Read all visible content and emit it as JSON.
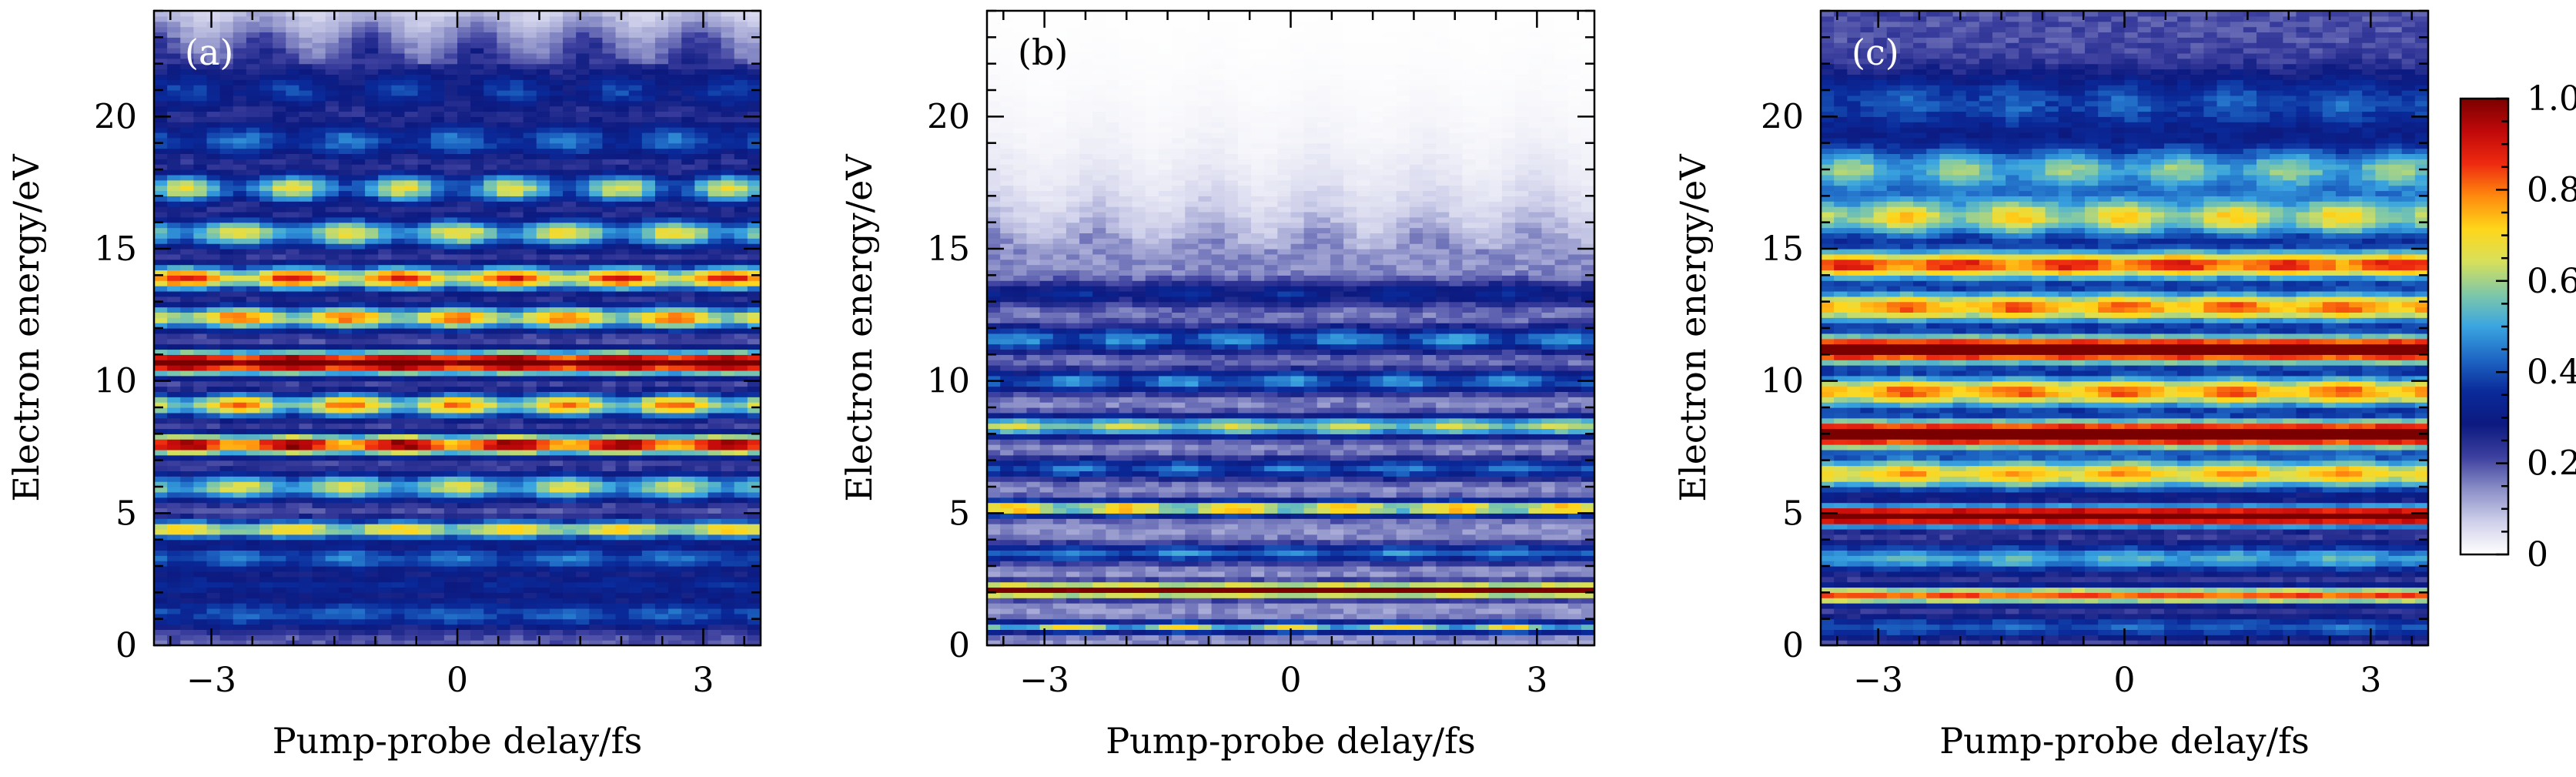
{
  "chart_data": [
    {
      "type": "heatmap",
      "panel_label": "(a)",
      "xlabel": "Pump-probe delay/fs",
      "ylabel": "Electron energy/eV",
      "xlim": [
        -3.7,
        3.7
      ],
      "ylim": [
        0,
        24
      ],
      "xticks": [
        -3,
        0,
        3
      ],
      "xtick_labels": [
        "−3",
        "0",
        "3"
      ],
      "yticks": [
        0,
        5,
        10,
        15,
        20
      ],
      "ytick_labels": [
        "0",
        "5",
        "10",
        "15",
        "20"
      ],
      "bands": [
        {
          "energy": 1.2,
          "width": 0.6,
          "level": 0.22,
          "modulation": 0.03
        },
        {
          "energy": 2.3,
          "width": 0.4,
          "level": 0.14,
          "modulation": 0.02
        },
        {
          "energy": 3.3,
          "width": 0.5,
          "level": 0.24,
          "modulation": 0.04
        },
        {
          "energy": 4.4,
          "width": 0.35,
          "level": 0.48,
          "modulation": 0.08
        },
        {
          "energy": 6.0,
          "width": 0.5,
          "level": 0.4,
          "modulation": 0.1
        },
        {
          "energy": 7.6,
          "width": 0.38,
          "level": 0.72,
          "modulation": 0.12
        },
        {
          "energy": 9.1,
          "width": 0.45,
          "level": 0.5,
          "modulation": 0.14
        },
        {
          "energy": 10.7,
          "width": 0.42,
          "level": 0.88,
          "modulation": 0.08
        },
        {
          "energy": 12.4,
          "width": 0.45,
          "level": 0.52,
          "modulation": 0.12
        },
        {
          "energy": 13.9,
          "width": 0.45,
          "level": 0.58,
          "modulation": 0.14
        },
        {
          "energy": 15.6,
          "width": 0.55,
          "level": 0.4,
          "modulation": 0.12
        },
        {
          "energy": 17.3,
          "width": 0.55,
          "level": 0.36,
          "modulation": 0.14
        },
        {
          "energy": 19.1,
          "width": 0.7,
          "level": 0.22,
          "modulation": 0.06
        },
        {
          "energy": 21.0,
          "width": 0.8,
          "level": 0.16,
          "modulation": 0.05
        },
        {
          "energy": 23.0,
          "width": 1.0,
          "level": 0.08,
          "modulation": 0.03
        }
      ],
      "background": 0.18,
      "fade_above": 22.0,
      "oscillation_period_fs": 1.33
    },
    {
      "type": "heatmap",
      "panel_label": "(b)",
      "xlabel": "Pump-probe delay/fs",
      "ylabel": "Electron energy/eV",
      "xlim": [
        -3.7,
        3.7
      ],
      "ylim": [
        0,
        24
      ],
      "xticks": [
        -3,
        0,
        3
      ],
      "xtick_labels": [
        "−3",
        "0",
        "3"
      ],
      "yticks": [
        0,
        5,
        10,
        15,
        20
      ],
      "ytick_labels": [
        "0",
        "5",
        "10",
        "15",
        "20"
      ],
      "bands": [
        {
          "energy": 0.7,
          "width": 0.22,
          "level": 0.45,
          "modulation": 0.12
        },
        {
          "energy": 2.1,
          "width": 0.25,
          "level": 0.92,
          "modulation": 0.05
        },
        {
          "energy": 3.5,
          "width": 0.35,
          "level": 0.3,
          "modulation": 0.05
        },
        {
          "energy": 5.2,
          "width": 0.3,
          "level": 0.55,
          "modulation": 0.1
        },
        {
          "energy": 6.7,
          "width": 0.4,
          "level": 0.28,
          "modulation": 0.05
        },
        {
          "energy": 8.3,
          "width": 0.4,
          "level": 0.45,
          "modulation": 0.06
        },
        {
          "energy": 10.0,
          "width": 0.45,
          "level": 0.3,
          "modulation": 0.06
        },
        {
          "energy": 11.6,
          "width": 0.5,
          "level": 0.3,
          "modulation": 0.06
        },
        {
          "energy": 13.3,
          "width": 0.5,
          "level": 0.18,
          "modulation": 0.04
        }
      ],
      "background": 0.14,
      "fade_above": 15.0,
      "oscillation_period_fs": 1.33
    },
    {
      "type": "heatmap",
      "panel_label": "(c)",
      "xlabel": "Pump-probe delay/fs",
      "ylabel": "Electron energy/eV",
      "xlim": [
        -3.7,
        3.7
      ],
      "ylim": [
        0,
        24
      ],
      "xticks": [
        -3,
        0,
        3
      ],
      "xtick_labels": [
        "−3",
        "0",
        "3"
      ],
      "yticks": [
        0,
        5,
        10,
        15,
        20
      ],
      "ytick_labels": [
        "0",
        "5",
        "10",
        "15",
        "20"
      ],
      "bands": [
        {
          "energy": 0.7,
          "width": 0.4,
          "level": 0.22,
          "modulation": 0.02
        },
        {
          "energy": 1.9,
          "width": 0.3,
          "level": 0.62,
          "modulation": 0.03
        },
        {
          "energy": 3.3,
          "width": 0.5,
          "level": 0.32,
          "modulation": 0.03
        },
        {
          "energy": 4.9,
          "width": 0.35,
          "level": 0.96,
          "modulation": 0.02
        },
        {
          "energy": 6.5,
          "width": 0.6,
          "level": 0.52,
          "modulation": 0.06
        },
        {
          "energy": 8.0,
          "width": 0.5,
          "level": 0.92,
          "modulation": 0.04
        },
        {
          "energy": 9.6,
          "width": 0.6,
          "level": 0.58,
          "modulation": 0.06
        },
        {
          "energy": 11.2,
          "width": 0.5,
          "level": 0.9,
          "modulation": 0.04
        },
        {
          "energy": 12.8,
          "width": 0.6,
          "level": 0.58,
          "modulation": 0.06
        },
        {
          "energy": 14.4,
          "width": 0.55,
          "level": 0.64,
          "modulation": 0.06
        },
        {
          "energy": 16.2,
          "width": 0.8,
          "level": 0.44,
          "modulation": 0.08
        },
        {
          "energy": 18.0,
          "width": 0.9,
          "level": 0.34,
          "modulation": 0.06
        },
        {
          "energy": 20.5,
          "width": 1.2,
          "level": 0.2,
          "modulation": 0.03
        }
      ],
      "background": 0.2,
      "fade_above": 30.0,
      "oscillation_period_fs": 1.33
    }
  ],
  "colorbar": {
    "range": [
      0,
      1
    ],
    "ticks": [
      0,
      0.2,
      0.4,
      0.6,
      0.8,
      1.0
    ],
    "tick_labels": [
      "0",
      "0.2",
      "0.4",
      "0.6",
      "0.8",
      "1.0"
    ],
    "colors": [
      "#ffffff",
      "#cfd0ea",
      "#8b8fc7",
      "#3c3f9e",
      "#0c1a80",
      "#0a2a9a",
      "#1e67c4",
      "#3aa5e0",
      "#7fc8a8",
      "#d8e05a",
      "#ffd61a",
      "#ff8a0e",
      "#ee2a10",
      "#c0080a",
      "#7a0000"
    ]
  }
}
